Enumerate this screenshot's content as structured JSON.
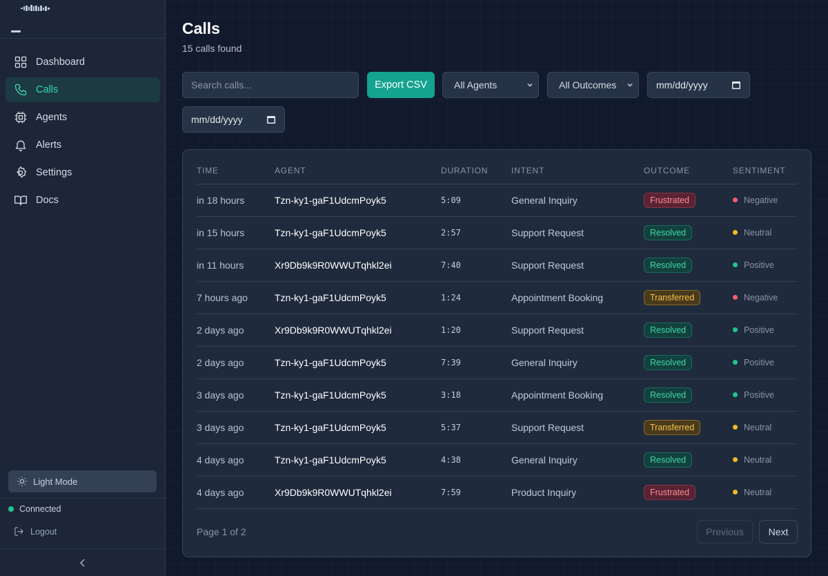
{
  "sidebar": {
    "nav": [
      {
        "label": "Dashboard",
        "icon": "grid-icon"
      },
      {
        "label": "Calls",
        "icon": "phone-icon",
        "active": true
      },
      {
        "label": "Agents",
        "icon": "chip-icon"
      },
      {
        "label": "Alerts",
        "icon": "bell-icon"
      },
      {
        "label": "Settings",
        "icon": "gear-icon"
      },
      {
        "label": "Docs",
        "icon": "book-icon"
      }
    ],
    "theme_toggle": "Light Mode",
    "status": "Connected",
    "logout": "Logout"
  },
  "page": {
    "title": "Calls",
    "subtitle": "15 calls found"
  },
  "filters": {
    "search_placeholder": "Search calls...",
    "export_label": "Export CSV",
    "agents_select": "All Agents",
    "outcomes_select": "All Outcomes",
    "date_from": "mm/dd/yyyy",
    "date_to": "mm/dd/yyyy"
  },
  "table": {
    "headers": [
      "TIME",
      "AGENT",
      "DURATION",
      "INTENT",
      "OUTCOME",
      "SENTIMENT"
    ],
    "rows": [
      {
        "time": "in 18 hours",
        "agent": "Tzn-ky1-gaF1UdcmPoyk5",
        "duration": "5:09",
        "intent": "General Inquiry",
        "outcome": "Frustrated",
        "sentiment": "Negative"
      },
      {
        "time": "in 15 hours",
        "agent": "Tzn-ky1-gaF1UdcmPoyk5",
        "duration": "2:57",
        "intent": "Support Request",
        "outcome": "Resolved",
        "sentiment": "Neutral"
      },
      {
        "time": "in 11 hours",
        "agent": "Xr9Db9k9R0WWUTqhkl2ei",
        "duration": "7:40",
        "intent": "Support Request",
        "outcome": "Resolved",
        "sentiment": "Positive"
      },
      {
        "time": "7 hours ago",
        "agent": "Tzn-ky1-gaF1UdcmPoyk5",
        "duration": "1:24",
        "intent": "Appointment Booking",
        "outcome": "Transferred",
        "sentiment": "Negative"
      },
      {
        "time": "2 days ago",
        "agent": "Xr9Db9k9R0WWUTqhkl2ei",
        "duration": "1:20",
        "intent": "Support Request",
        "outcome": "Resolved",
        "sentiment": "Positive"
      },
      {
        "time": "2 days ago",
        "agent": "Tzn-ky1-gaF1UdcmPoyk5",
        "duration": "7:39",
        "intent": "General Inquiry",
        "outcome": "Resolved",
        "sentiment": "Positive"
      },
      {
        "time": "3 days ago",
        "agent": "Tzn-ky1-gaF1UdcmPoyk5",
        "duration": "3:18",
        "intent": "Appointment Booking",
        "outcome": "Resolved",
        "sentiment": "Positive"
      },
      {
        "time": "3 days ago",
        "agent": "Tzn-ky1-gaF1UdcmPoyk5",
        "duration": "5:37",
        "intent": "Support Request",
        "outcome": "Transferred",
        "sentiment": "Neutral"
      },
      {
        "time": "4 days ago",
        "agent": "Tzn-ky1-gaF1UdcmPoyk5",
        "duration": "4:38",
        "intent": "General Inquiry",
        "outcome": "Resolved",
        "sentiment": "Neutral"
      },
      {
        "time": "4 days ago",
        "agent": "Xr9Db9k9R0WWUTqhkl2ei",
        "duration": "7:59",
        "intent": "Product Inquiry",
        "outcome": "Frustrated",
        "sentiment": "Neutral"
      }
    ]
  },
  "pagination": {
    "text": "Page 1 of 2",
    "previous": "Previous",
    "next": "Next"
  },
  "colors": {
    "accent": "#14a38f",
    "positive": "#22c58b",
    "neutral": "#f4b92a",
    "negative": "#f0606e"
  }
}
